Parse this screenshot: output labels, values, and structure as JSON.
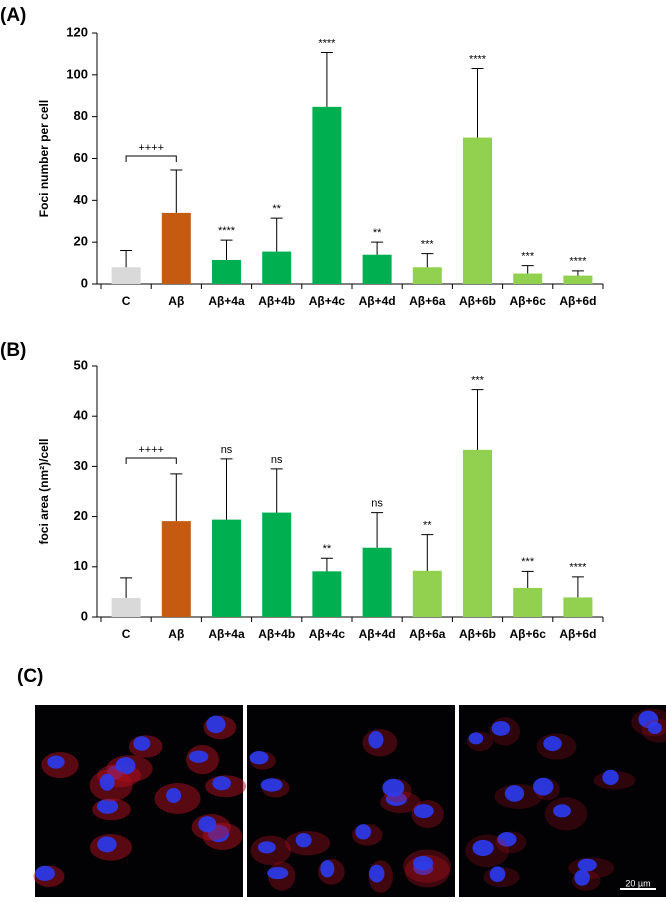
{
  "chart_data": [
    {
      "type": "bar",
      "panel": "(A)",
      "y_label": "Foci  number per cell",
      "categories": [
        "C",
        "Aβ",
        "Aβ+4a",
        "Aβ+4b",
        "Aβ+4c",
        "Aβ+4d",
        "Aβ+6a",
        "Aβ+6b",
        "Aβ+6c",
        "Aβ+6d"
      ],
      "values": [
        8,
        34,
        11.5,
        15.5,
        84.7,
        14,
        8,
        70,
        5,
        4
      ],
      "errors": [
        8,
        20.5,
        9.5,
        16,
        26,
        6,
        6.5,
        33,
        3.8,
        2.3
      ],
      "significance": [
        "",
        "",
        "****",
        "**",
        "****",
        "**",
        "***",
        "****",
        "***",
        "****"
      ],
      "bracket_label": "++++",
      "colors": [
        "#d9d9d9",
        "#c55a11",
        "#00b050",
        "#00b050",
        "#00b050",
        "#00b050",
        "#92d050",
        "#92d050",
        "#92d050",
        "#92d050"
      ],
      "ylim": [
        0,
        120
      ],
      "yticks": [
        0,
        20,
        40,
        60,
        80,
        100,
        120
      ]
    },
    {
      "type": "bar",
      "panel": "(B)",
      "y_label": "foci area (nm²)/cell",
      "categories": [
        "C",
        "Aβ",
        "Aβ+4a",
        "Aβ+4b",
        "Aβ+4c",
        "Aβ+4d",
        "Aβ+6a",
        "Aβ+6b",
        "Aβ+6c",
        "Aβ+6d"
      ],
      "values": [
        3.8,
        19.1,
        19.4,
        20.8,
        9.1,
        13.8,
        9.2,
        33.3,
        5.8,
        3.9
      ],
      "errors": [
        4,
        9.4,
        12.1,
        8.7,
        2.6,
        7,
        7.2,
        12,
        3.3,
        4.1
      ],
      "significance": [
        "",
        "",
        "ns",
        "ns",
        "**",
        "ns",
        "**",
        "***",
        "***",
        "****"
      ],
      "bracket_label": "++++",
      "colors": [
        "#d9d9d9",
        "#c55a11",
        "#00b050",
        "#00b050",
        "#00b050",
        "#00b050",
        "#92d050",
        "#92d050",
        "#92d050",
        "#92d050"
      ],
      "ylim": [
        0,
        50
      ],
      "yticks": [
        0,
        10,
        20,
        30,
        40,
        50
      ]
    }
  ],
  "image_panel": {
    "panel": "(C)",
    "scale_bar": "20 µm"
  }
}
